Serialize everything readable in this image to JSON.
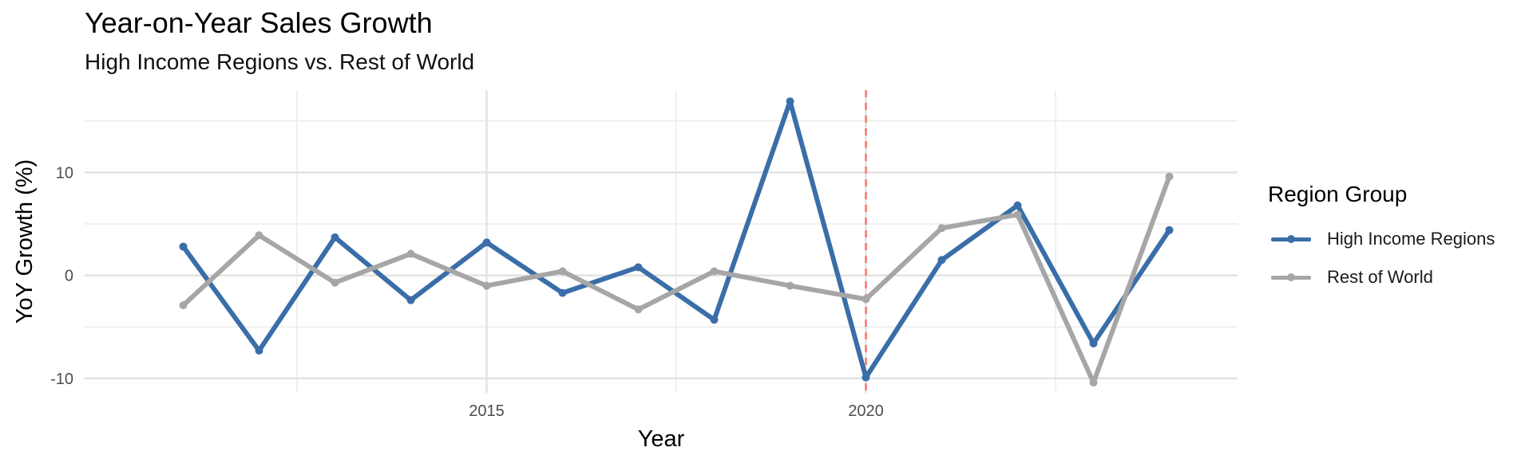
{
  "chart_data": {
    "type": "line",
    "title": "Year-on-Year Sales Growth",
    "subtitle": "High Income Regions vs. Rest of World",
    "xlabel": "Year",
    "ylabel": "YoY Growth (%)",
    "x": [
      2011,
      2012,
      2013,
      2014,
      2015,
      2016,
      2017,
      2018,
      2019,
      2020,
      2021,
      2022,
      2023,
      2024
    ],
    "xlim": [
      2009.7,
      2024.9
    ],
    "ylim": [
      -11.4,
      18
    ],
    "x_ticks": [
      2015,
      2020
    ],
    "x_tick_labels": [
      "2015",
      "2020"
    ],
    "y_ticks": [
      -10,
      0,
      10
    ],
    "y_tick_labels": [
      "-10",
      "0",
      "10"
    ],
    "grid": true,
    "legend_title": "Region Group",
    "legend_position": "right",
    "reference_line": {
      "x": 2020,
      "style": "dashed",
      "color": "#f8766d"
    },
    "series": [
      {
        "name": "High Income Regions",
        "color": "#3a6ea8",
        "values": [
          2.8,
          -7.3,
          3.7,
          -2.4,
          3.2,
          -1.7,
          0.8,
          -4.3,
          16.9,
          -9.9,
          1.5,
          6.8,
          -6.6,
          4.4
        ]
      },
      {
        "name": "Rest of World",
        "color": "#a6a6a6",
        "values": [
          -2.9,
          3.9,
          -0.7,
          2.1,
          -1.0,
          0.4,
          -3.3,
          0.4,
          -1.0,
          -2.3,
          4.6,
          5.9,
          -10.4,
          9.6
        ]
      }
    ]
  }
}
